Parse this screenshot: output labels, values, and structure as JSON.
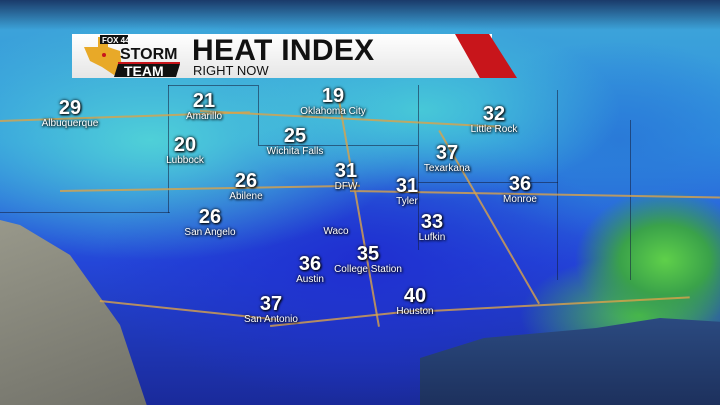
{
  "header": {
    "title": "HEAT INDEX",
    "subtitle": "RIGHT NOW"
  },
  "logo": {
    "network": "FOX 44",
    "line1": "STORM",
    "line2": "TEAM"
  },
  "colors": {
    "accent_red": "#c8151b",
    "banner": "#ffffff",
    "cool": "#4fd0d8",
    "mid": "#2446d8",
    "warm": "#5fd04a"
  },
  "cities": [
    {
      "name": "Albuquerque",
      "value": "29"
    },
    {
      "name": "Amarillo",
      "value": "21"
    },
    {
      "name": "Oklahoma City",
      "value": "19"
    },
    {
      "name": "Lubbock",
      "value": "20"
    },
    {
      "name": "Wichita Falls",
      "value": "25"
    },
    {
      "name": "Little Rock",
      "value": "32"
    },
    {
      "name": "Texarkana",
      "value": "37"
    },
    {
      "name": "Abilene",
      "value": "26"
    },
    {
      "name": "DFW",
      "value": "31"
    },
    {
      "name": "Tyler",
      "value": "31"
    },
    {
      "name": "Monroe",
      "value": "36"
    },
    {
      "name": "San Angelo",
      "value": "26"
    },
    {
      "name": "Waco",
      "value": ""
    },
    {
      "name": "Lufkin",
      "value": "33"
    },
    {
      "name": "College Station",
      "value": "35"
    },
    {
      "name": "Austin",
      "value": "36"
    },
    {
      "name": "Houston",
      "value": "40"
    },
    {
      "name": "San Antonio",
      "value": "37"
    }
  ]
}
